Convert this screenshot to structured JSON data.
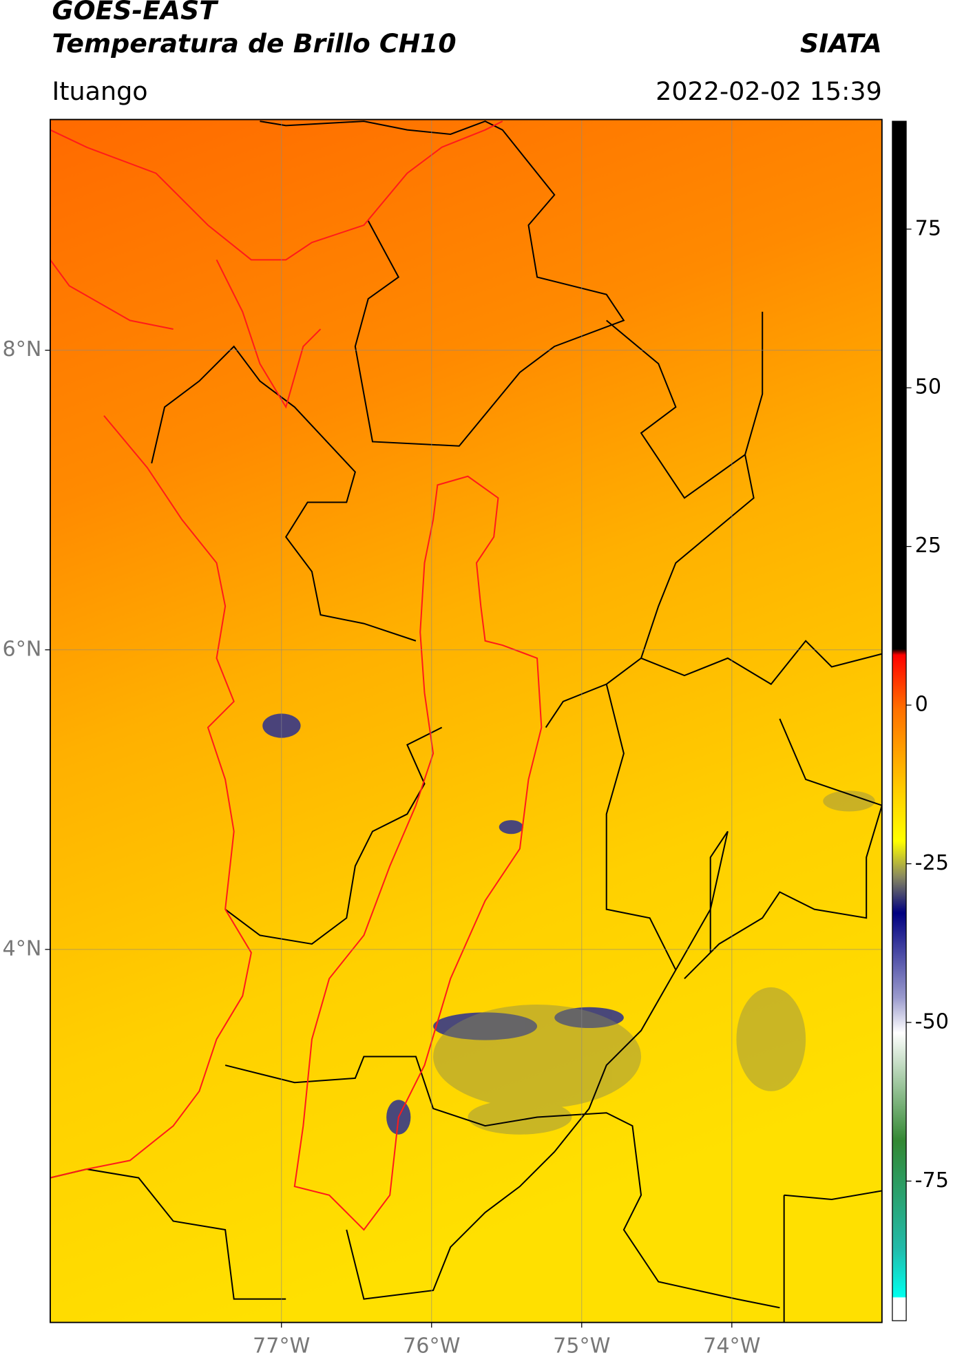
{
  "header": {
    "satellite": "GOES-EAST",
    "product": "Temperatura de Brillo CH10",
    "organization": "SIATA",
    "location": "Ituango",
    "datetime": "2022-02-02 15:39"
  },
  "map": {
    "xlim": [
      -78.54,
      -73.0
    ],
    "ylim": [
      1.51,
      9.54
    ],
    "lat_ticks": [
      {
        "value": 8,
        "label": "8°N"
      },
      {
        "value": 6,
        "label": "6°N"
      },
      {
        "value": 4,
        "label": "4°N"
      }
    ],
    "lon_ticks": [
      {
        "value": -77,
        "label": "77°W"
      },
      {
        "value": -76,
        "label": "76°W"
      },
      {
        "value": -75,
        "label": "75°W"
      },
      {
        "value": -74,
        "label": "74°W"
      }
    ]
  },
  "colorbar": {
    "lim": [
      -97,
      92
    ],
    "ticks": [
      75,
      50,
      25,
      0,
      -25,
      -50,
      -75
    ]
  }
}
